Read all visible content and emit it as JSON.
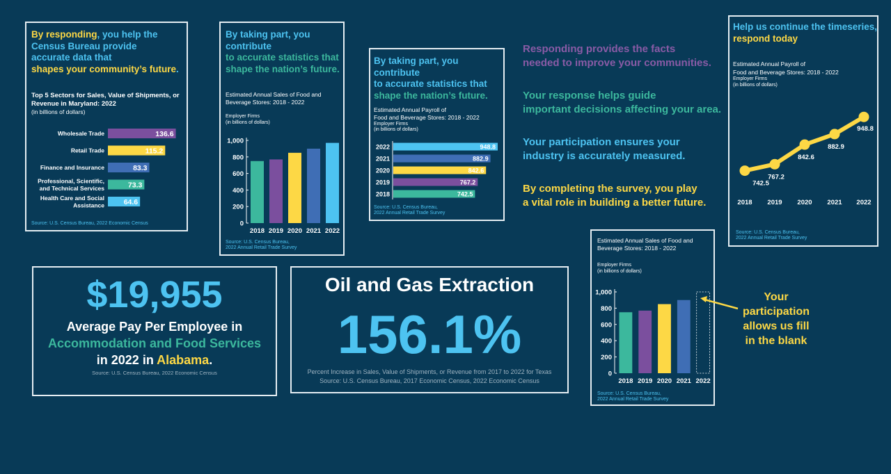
{
  "colors": {
    "background": "#083a57",
    "teal": "#3cb89d",
    "purple": "#7b4f9e",
    "yellow": "#fdd845",
    "blue": "#3f6eb5",
    "lightblue": "#4dc3f1"
  },
  "card1": {
    "headline_a": "By responding",
    "headline_b": ", you help the",
    "headline_c": "Census Bureau provide",
    "headline_d": "accurate data that",
    "headline_e": "shapes your community’s future",
    "headline_f": ".",
    "chart_title": "Top 5 Sectors for Sales, Value of Shipments, or Revenue in Maryland: 2022",
    "units": "(in billions of dollars)",
    "source": "Source: U.S. Census Bureau, 2022 Economic Census"
  },
  "card2": {
    "headline_a": "By taking part, you",
    "headline_b": "contribute",
    "headline_c": "to accurate statistics that",
    "headline_d": "shape the nation’s future.",
    "chart_title": "Estimated Annual Sales of Food and Beverage Stores: 2018 - 2022",
    "sub1": "Employer Firms",
    "sub2": "(in billions of dollars)",
    "source1": "Source: U.S. Census Bureau,",
    "source2": "2022 Annual Retail Trade Survey"
  },
  "card3": {
    "headline_a": "By taking part, you contribute",
    "headline_b": "to accurate statistics that",
    "headline_c": "shape the nation’s future.",
    "chart_title1": "Estimated Annual Payroll of",
    "chart_title2": "Food and Beverage Stores: 2018 - 2022",
    "sub1": "Employer Firms",
    "sub2": "(in billions of dollars)",
    "source1": "Source: U.S. Census Bureau,",
    "source2": "2022 Annual Retail Trade Survey"
  },
  "messages": {
    "m1a": "Responding provides the facts",
    "m1b": "needed to improve your communities.",
    "m2a": "Your response helps guide",
    "m2b": "important decisions affecting your area.",
    "m3a": "Your participation ensures your",
    "m3b": "industry is accurately measured.",
    "m4a": "By completing the survey, you play",
    "m4b": "a vital role in building a better future."
  },
  "card4": {
    "headline_a": "Help us continue the timeseries,",
    "headline_b": "respond today",
    "chart_title1": "Estimated Annual Payroll of",
    "chart_title2": "Food and Beverage Stores: 2018 - 2022",
    "sub1": "Employer Firms",
    "sub2": "(in billions of dollars)",
    "source1": "Source: U.S. Census Bureau,",
    "source2": "2022 Annual Retail Trade Survey"
  },
  "card5": {
    "big_number": "$19,955",
    "line1": "Average Pay Per Employee in",
    "line2": "Accommodation and Food Services",
    "line3a": "in 2022 in ",
    "line3b": "Alabama",
    "line3c": ".",
    "source": "Source: U.S. Census Bureau, 2022 Economic Census"
  },
  "card6": {
    "title": "Oil and Gas Extraction",
    "big_number": "156.1%",
    "caption": "Percent Increase in Sales, Value of Shipments, or Revenue from 2017 to 2022 for Texas",
    "source": "Source: U.S. Census Bureau, 2017 Economic Census, 2022 Economic Census"
  },
  "card7": {
    "chart_title": "Estimated Annual Sales of Food and Beverage Stores: 2018 - 2022",
    "sub1": "Employer Firms",
    "sub2": "(in billions of dollars)",
    "source1": "Source: U.S. Census Bureau,",
    "source2": "2022 Annual Retail Trade Survey"
  },
  "callout": {
    "line1": "Your",
    "line2": "participation",
    "line3": "allows us fill",
    "line4": "in the blank"
  },
  "chart_data": [
    {
      "id": "md-sectors",
      "type": "bar",
      "orientation": "horizontal",
      "title": "Top 5 Sectors for Sales, Value of Shipments, or Revenue in Maryland: 2022",
      "units": "(in billions of dollars)",
      "categories": [
        "Wholesale Trade",
        "Retail Trade",
        "Finance and Insurance",
        "Professional, Scientific, and Technical Services",
        "Health Care and Social Assistance"
      ],
      "category_lines": [
        [
          "Wholesale Trade"
        ],
        [
          "Retail Trade"
        ],
        [
          "Finance and Insurance"
        ],
        [
          "Professional, Scientific,",
          "and Technical Services"
        ],
        [
          "Health Care and Social",
          "Assistance"
        ]
      ],
      "values": [
        136.6,
        115.2,
        83.3,
        73.3,
        64.6
      ],
      "labels": [
        "136.6",
        "115.2",
        "83.3",
        "73.3",
        "64.6"
      ],
      "colors": [
        "#7b4f9e",
        "#fdd845",
        "#3f6eb5",
        "#3cb89d",
        "#4dc3f1"
      ],
      "xlim": [
        0,
        140
      ]
    },
    {
      "id": "sales-vertical",
      "type": "bar",
      "title": "Estimated Annual Sales of Food and Beverage Stores: 2018 - 2022",
      "categories": [
        "2018",
        "2019",
        "2020",
        "2021",
        "2022"
      ],
      "values": [
        750,
        770,
        850,
        900,
        970
      ],
      "colors": [
        "#3cb89d",
        "#7b4f9e",
        "#fdd845",
        "#3f6eb5",
        "#4dc3f1"
      ],
      "ylim": [
        0,
        1000
      ],
      "yticks": [
        0,
        200,
        400,
        600,
        800,
        1000
      ],
      "ytick_labels": [
        "0",
        "200",
        "400",
        "600",
        "800",
        "1,000"
      ]
    },
    {
      "id": "payroll-horizontal",
      "type": "bar",
      "orientation": "horizontal",
      "title": "Estimated Annual Payroll of Food and Beverage Stores: 2018 - 2022",
      "categories": [
        "2022",
        "2021",
        "2020",
        "2019",
        "2018"
      ],
      "values": [
        948.8,
        882.9,
        842.6,
        767.2,
        742.5
      ],
      "labels": [
        "948.8",
        "882.9",
        "842.6",
        "767.2",
        "742.5"
      ],
      "colors": [
        "#4dc3f1",
        "#3f6eb5",
        "#fdd845",
        "#7b4f9e",
        "#3cb89d"
      ],
      "xlim": [
        0,
        948.8
      ]
    },
    {
      "id": "payroll-line",
      "type": "line",
      "title": "Estimated Annual Payroll of Food and Beverage Stores: 2018 - 2022",
      "x": [
        "2018",
        "2019",
        "2020",
        "2021",
        "2022"
      ],
      "y": [
        742.5,
        767.2,
        842.6,
        882.9,
        948.8
      ],
      "labels": [
        "742.5",
        "767.2",
        "842.6",
        "882.9",
        "948.8"
      ],
      "color": "#fdd845",
      "ylim": [
        640,
        1000
      ]
    },
    {
      "id": "sales-blank",
      "type": "bar",
      "title": "Estimated Annual Sales of Food and Beverage Stores: 2018 - 2022",
      "categories": [
        "2018",
        "2019",
        "2020",
        "2021",
        "2022"
      ],
      "values": [
        750,
        770,
        850,
        900,
        null
      ],
      "colors": [
        "#3cb89d",
        "#7b4f9e",
        "#fdd845",
        "#3f6eb5",
        "none"
      ],
      "ylim": [
        0,
        1000
      ],
      "yticks": [
        0,
        200,
        400,
        600,
        800,
        1000
      ],
      "ytick_labels": [
        "0",
        "200",
        "400",
        "600",
        "800",
        "1,000"
      ]
    }
  ]
}
